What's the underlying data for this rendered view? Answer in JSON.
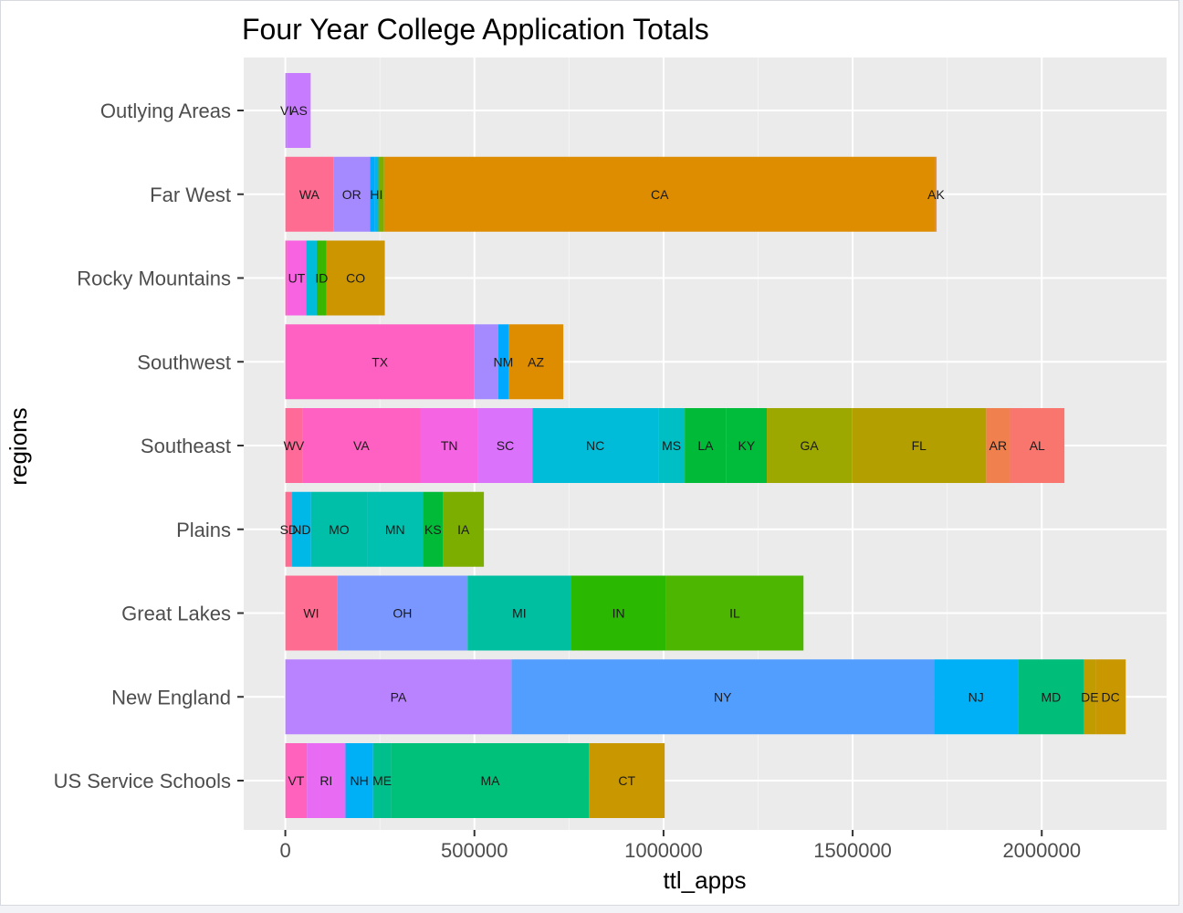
{
  "chart_data": {
    "type": "bar",
    "orientation": "horizontal",
    "stacked": true,
    "title": "Four Year College Application Totals",
    "xlabel": "ttl_apps",
    "ylabel": "regions",
    "xlim": [
      -110000,
      2330000
    ],
    "xticks": [
      0,
      500000,
      1000000,
      1500000,
      2000000
    ],
    "xtick_labels": [
      "0",
      "500000",
      "1000000",
      "1500000",
      "2000000"
    ],
    "grid": true,
    "legend": "none",
    "categories": [
      {
        "name": "Outlying Areas",
        "segments": [
          {
            "label": "VI",
            "value": 5000,
            "color": "#C77CFF"
          },
          {
            "label": "AS",
            "value": 62000,
            "color": "#C77CFF"
          }
        ]
      },
      {
        "name": "Far West",
        "segments": [
          {
            "label": "WA",
            "value": 127000,
            "color": "#FF6C91"
          },
          {
            "label": "OR",
            "value": 97000,
            "color": "#A58AFF"
          },
          {
            "label": "",
            "value": 12000,
            "color": "#00A9FF"
          },
          {
            "label": "HI",
            "value": 10000,
            "color": "#00B4EF"
          },
          {
            "label": "",
            "value": 15000,
            "color": "#7CAE00"
          },
          {
            "label": "CA",
            "value": 1458000,
            "color": "#DE8C00"
          },
          {
            "label": "AK",
            "value": 3000,
            "color": "#F8766D"
          }
        ]
      },
      {
        "name": "Rocky Mountains",
        "segments": [
          {
            "label": "",
            "value": 5000,
            "color": "#FF61C3"
          },
          {
            "label": "UT",
            "value": 50000,
            "color": "#F763E0"
          },
          {
            "label": "",
            "value": 28000,
            "color": "#00BCD8"
          },
          {
            "label": "ID",
            "value": 26000,
            "color": "#39B600"
          },
          {
            "label": "CO",
            "value": 154000,
            "color": "#CD9600"
          }
        ]
      },
      {
        "name": "Southwest",
        "segments": [
          {
            "label": "TX",
            "value": 500000,
            "color": "#FF61C3"
          },
          {
            "label": "",
            "value": 63000,
            "color": "#A58AFF"
          },
          {
            "label": "NM",
            "value": 27000,
            "color": "#00A9FF"
          },
          {
            "label": "AZ",
            "value": 145000,
            "color": "#DE8C00"
          }
        ]
      },
      {
        "name": "Southeast",
        "segments": [
          {
            "label": "WV",
            "value": 45000,
            "color": "#FF6A98"
          },
          {
            "label": "VA",
            "value": 312000,
            "color": "#FF61C3"
          },
          {
            "label": "TN",
            "value": 153000,
            "color": "#F564E3"
          },
          {
            "label": "SC",
            "value": 143000,
            "color": "#DB72FB"
          },
          {
            "label": "NC",
            "value": 333000,
            "color": "#00BCD8"
          },
          {
            "label": "MS",
            "value": 70000,
            "color": "#00BFC4"
          },
          {
            "label": "LA",
            "value": 110000,
            "color": "#00BA38"
          },
          {
            "label": "KY",
            "value": 107000,
            "color": "#00BC3A"
          },
          {
            "label": "GA",
            "value": 225000,
            "color": "#9CA700"
          },
          {
            "label": "FL",
            "value": 355000,
            "color": "#B3A000"
          },
          {
            "label": "AR",
            "value": 63000,
            "color": "#F0804E"
          },
          {
            "label": "AL",
            "value": 144000,
            "color": "#F8766D"
          }
        ]
      },
      {
        "name": "Plains",
        "segments": [
          {
            "label": "SD",
            "value": 18000,
            "color": "#FF6C91"
          },
          {
            "label": "ND",
            "value": 50000,
            "color": "#00B8E7"
          },
          {
            "label": "MO",
            "value": 148000,
            "color": "#00BFA8"
          },
          {
            "label": "MN",
            "value": 148000,
            "color": "#00C0AF"
          },
          {
            "label": "KS",
            "value": 53000,
            "color": "#00BA38"
          },
          {
            "label": "IA",
            "value": 108000,
            "color": "#7CAE00"
          }
        ]
      },
      {
        "name": "Great Lakes",
        "segments": [
          {
            "label": "WI",
            "value": 137000,
            "color": "#FF6C91"
          },
          {
            "label": "OH",
            "value": 345000,
            "color": "#7997FF"
          },
          {
            "label": "MI",
            "value": 273000,
            "color": "#00BFA0"
          },
          {
            "label": "IN",
            "value": 252000,
            "color": "#2BB800"
          },
          {
            "label": "IL",
            "value": 363000,
            "color": "#4DB600"
          }
        ]
      },
      {
        "name": "New England",
        "segments": [
          {
            "label": "PA",
            "value": 598000,
            "color": "#B983FF"
          },
          {
            "label": "NY",
            "value": 1117000,
            "color": "#529EFF"
          },
          {
            "label": "NJ",
            "value": 222000,
            "color": "#00B0F6"
          },
          {
            "label": "MD",
            "value": 175000,
            "color": "#00BD7A"
          },
          {
            "label": "DE",
            "value": 30000,
            "color": "#C09C00"
          },
          {
            "label": "DC",
            "value": 80000,
            "color": "#C99800"
          }
        ]
      },
      {
        "name": "US Service Schools",
        "segments": [
          {
            "label": "VT",
            "value": 57000,
            "color": "#FF62BC"
          },
          {
            "label": "RI",
            "value": 102000,
            "color": "#E76BF3"
          },
          {
            "label": "NH",
            "value": 73000,
            "color": "#00B0F6"
          },
          {
            "label": "ME",
            "value": 48000,
            "color": "#00BF8C"
          },
          {
            "label": "MA",
            "value": 523000,
            "color": "#00C17A"
          },
          {
            "label": "CT",
            "value": 200000,
            "color": "#C99800"
          }
        ]
      }
    ],
    "panel_background": "#EBEBEB",
    "grid_major_color": "#FFFFFF",
    "grid_minor_color": "#F5F5F5"
  }
}
